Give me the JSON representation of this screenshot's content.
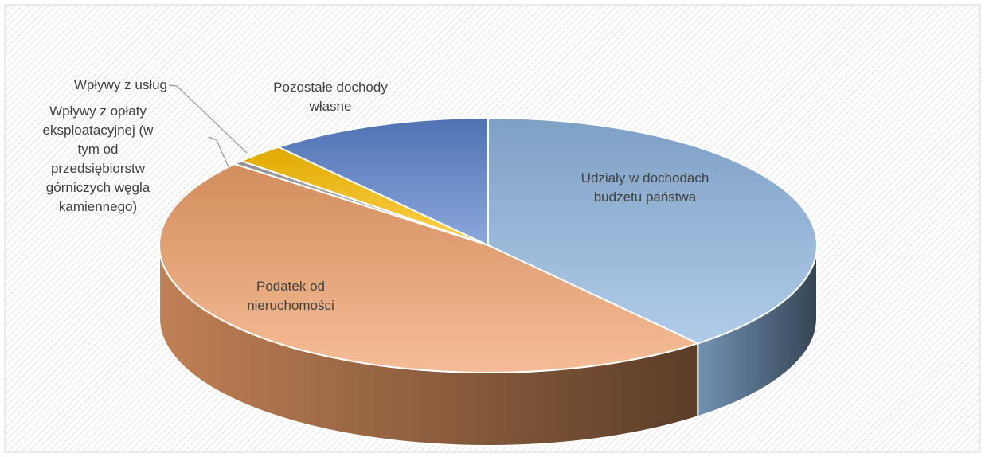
{
  "chart_data": {
    "type": "pie3d",
    "categories": [
      "Udziały w dochodach budżetu państwa",
      "Podatek od nieruchomości",
      "Wpływy z opłaty eksploatacyjnej (w tym od przedsiębiorstw górniczych węgla kamiennego)",
      "Wpływy z usług",
      "Pozostałe dochody własne"
    ],
    "values": [
      39,
      47,
      0.5,
      2.5,
      11
    ],
    "colors": [
      "#8fb6e0",
      "#f0a06a",
      "#a5a5a5",
      "#ffc000",
      "#5a82cc"
    ]
  }
}
